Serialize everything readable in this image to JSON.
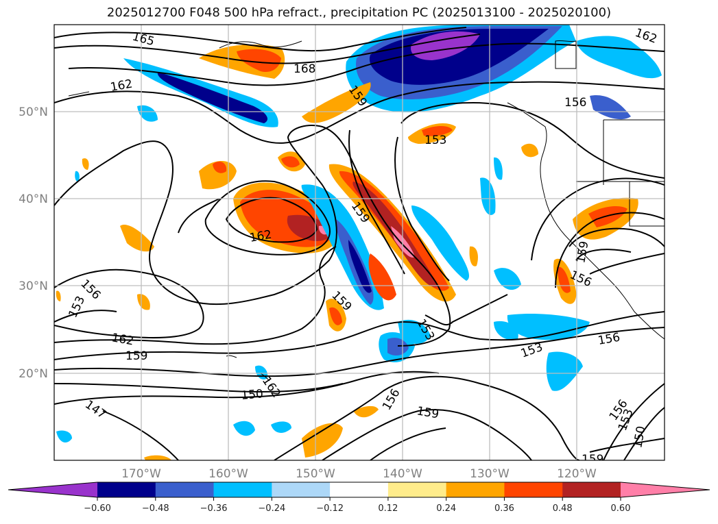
{
  "title": "2025012700 F048 500 hPa refract., precipitation PC (2025013100 - 2025020100)",
  "lat_labels": [
    "50°N",
    "40°N",
    "30°N",
    "20°N"
  ],
  "lon_labels": [
    "170°W",
    "160°W",
    "150°W",
    "140°W",
    "130°W",
    "120°W"
  ],
  "colorbar": {
    "colors": [
      "#9933cc",
      "#00008b",
      "#3a5fcd",
      "#00bfff",
      "#add8f8",
      "#ffffff",
      "#ffec8b",
      "#ffa500",
      "#ff4500",
      "#b22222",
      "#ff7fa8"
    ],
    "tick_labels": [
      "−0.60",
      "−0.48",
      "−0.36",
      "−0.24",
      "−0.12",
      "0.12",
      "0.24",
      "0.36",
      "0.48",
      "0.60"
    ]
  },
  "contour_labels": [
    "165",
    "168",
    "162",
    "159",
    "156",
    "153",
    "162",
    "159",
    "162",
    "156",
    "153",
    "159",
    "162",
    "159",
    "150",
    "147",
    "156",
    "159",
    "153",
    "156",
    "153",
    "156",
    "159",
    "156",
    "153",
    "150",
    "159",
    "162"
  ]
}
